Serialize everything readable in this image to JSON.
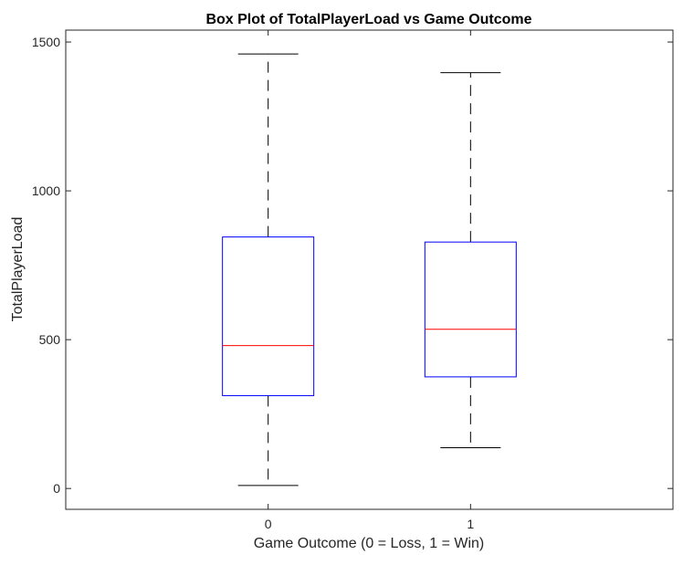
{
  "chart_data": {
    "type": "boxplot",
    "title": "Box Plot of TotalPlayerLoad vs Game Outcome",
    "xlabel": "Game Outcome (0 = Loss, 1 = Win)",
    "ylabel": "TotalPlayerLoad",
    "categories": [
      "0",
      "1"
    ],
    "boxes": [
      {
        "category": "0",
        "whisker_low": 10,
        "q1": 312,
        "median": 480,
        "q3": 845,
        "whisker_high": 1460
      },
      {
        "category": "1",
        "whisker_low": 137,
        "q1": 375,
        "median": 535,
        "q3": 828,
        "whisker_high": 1397
      }
    ],
    "y_ticks": [
      0,
      500,
      1000,
      1500
    ],
    "ylim": [
      -70,
      1540
    ],
    "grid": false,
    "colors": {
      "box": "#0000ff",
      "median": "#ff0000",
      "whisker": "#000000",
      "axis": "#262626"
    }
  }
}
